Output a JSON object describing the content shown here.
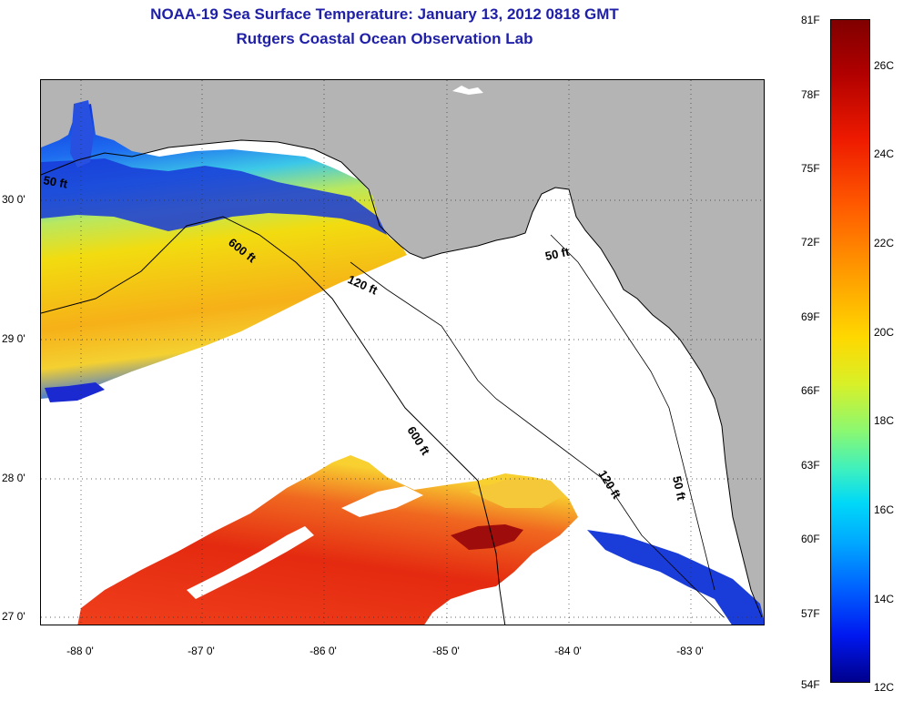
{
  "title": {
    "line1": "NOAA-19 Sea Surface Temperature:  January 13, 2012 0818 GMT",
    "line2": "Rutgers Coastal Ocean Observation Lab"
  },
  "colors": {
    "title": "#1f1fa8",
    "land": "#b4b4b4",
    "no_data": "#ffffff",
    "coastline": "#000000"
  },
  "map": {
    "lat_labels": [
      "30 0'",
      "29 0'",
      "28 0'",
      "27 0'"
    ],
    "lon_labels": [
      "-88 0'",
      "-87 0'",
      "-86 0'",
      "-85 0'",
      "-84 0'",
      "-83 0'"
    ],
    "contour_labels": {
      "c50_west": "50 ft",
      "c600_north": "600 ft",
      "c120_north": "120 ft",
      "c50_east": "50 ft",
      "c600_south": "600 ft",
      "c120_south": "120 ft",
      "c50_south": "50 ft"
    },
    "icons": [
      "land-mass",
      "sst-field",
      "bathymetry-contour"
    ]
  },
  "colorbar": {
    "fahrenheit_labels": [
      "81F",
      "78F",
      "75F",
      "72F",
      "69F",
      "66F",
      "63F",
      "60F",
      "57F",
      "54F"
    ],
    "celsius_labels": [
      "26C",
      "24C",
      "22C",
      "20C",
      "18C",
      "16C",
      "14C",
      "12C"
    ]
  }
}
